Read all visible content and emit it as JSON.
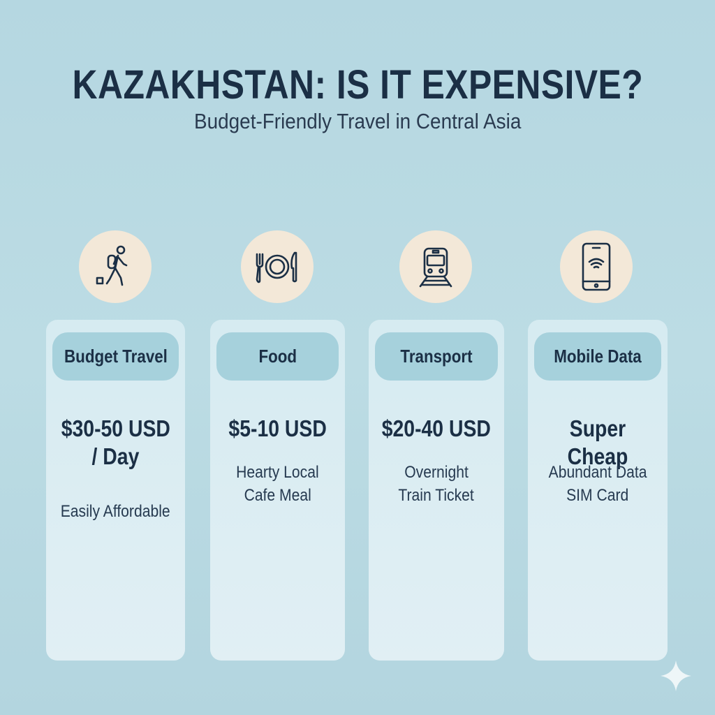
{
  "header": {
    "title": "KAZAKHSTAN: IS IT EXPENSIVE?",
    "subtitle": "Budget-Friendly Travel in Central Asia"
  },
  "colors": {
    "background": "#b8d9e2",
    "title": "#1b2f45",
    "circle": "#f3e8d8",
    "pill": "#a6d1dc",
    "card": "#dbedf2"
  },
  "cards": [
    {
      "icon": "backpacker-icon",
      "label": "Budget Travel",
      "price_line1": "$30-50 USD",
      "price_line2": "/ Day",
      "desc_line1": "Easily Affordable",
      "desc_line2": ""
    },
    {
      "icon": "plate-fork-knife-icon",
      "label": "Food",
      "price_line1": "$5-10 USD",
      "price_line2": "",
      "desc_line1": "Hearty Local",
      "desc_line2": "Cafe Meal"
    },
    {
      "icon": "train-icon",
      "label": "Transport",
      "price_line1": "$20-40 USD",
      "price_line2": "",
      "desc_line1": "Overnight",
      "desc_line2": "Train Ticket"
    },
    {
      "icon": "smartphone-wifi-icon",
      "label": "Mobile Data",
      "price_line1": "Super Cheap",
      "price_line2": "",
      "desc_line1": "Abundant Data",
      "desc_line2": "SIM Card"
    }
  ]
}
